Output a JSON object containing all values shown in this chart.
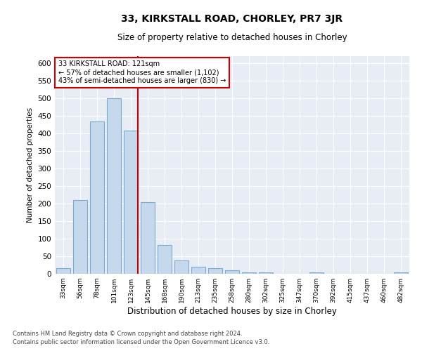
{
  "title_line1": "33, KIRKSTALL ROAD, CHORLEY, PR7 3JR",
  "title_line2": "Size of property relative to detached houses in Chorley",
  "xlabel": "Distribution of detached houses by size in Chorley",
  "ylabel": "Number of detached properties",
  "footer_line1": "Contains HM Land Registry data © Crown copyright and database right 2024.",
  "footer_line2": "Contains public sector information licensed under the Open Government Licence v3.0.",
  "annotation_line1": "33 KIRKSTALL ROAD: 121sqm",
  "annotation_line2": "← 57% of detached houses are smaller (1,102)",
  "annotation_line3": "43% of semi-detached houses are larger (830) →",
  "bar_color": "#c5d8ec",
  "bar_edge_color": "#7aaace",
  "vline_color": "#cc0000",
  "annotation_box_edge": "#cc0000",
  "background_color": "#ffffff",
  "plot_bg_color": "#e8edf5",
  "grid_color": "#ffffff",
  "categories": [
    "33sqm",
    "56sqm",
    "78sqm",
    "101sqm",
    "123sqm",
    "145sqm",
    "168sqm",
    "190sqm",
    "213sqm",
    "235sqm",
    "258sqm",
    "280sqm",
    "302sqm",
    "325sqm",
    "347sqm",
    "370sqm",
    "392sqm",
    "415sqm",
    "437sqm",
    "460sqm",
    "482sqm"
  ],
  "values": [
    17,
    211,
    435,
    500,
    408,
    204,
    83,
    38,
    20,
    17,
    10,
    5,
    5,
    0,
    0,
    5,
    0,
    0,
    0,
    0,
    5
  ],
  "ylim": [
    0,
    620
  ],
  "yticks": [
    0,
    50,
    100,
    150,
    200,
    250,
    300,
    350,
    400,
    450,
    500,
    550,
    600
  ],
  "vline_x_index": 4.5,
  "figsize": [
    6.0,
    5.0
  ],
  "dpi": 100
}
